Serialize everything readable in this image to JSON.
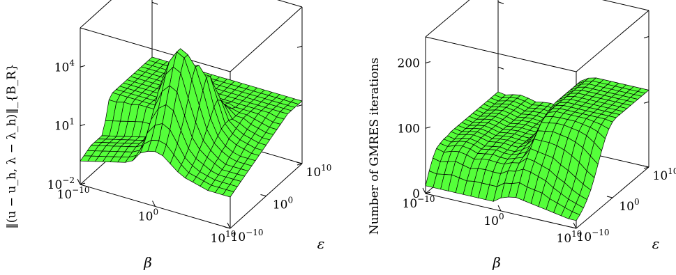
{
  "chart_data": [
    {
      "type": "surface",
      "xlabel": "β",
      "ylabel": "ε",
      "zlabel": "‖(u − u_h, λ − λ_h)‖_{B_R}",
      "z_scale": "log",
      "x_ticks": [
        {
          "base": "10",
          "exp": "−10"
        },
        {
          "base": "10",
          "exp": "0"
        },
        {
          "base": "10",
          "exp": "10"
        }
      ],
      "y_ticks": [
        {
          "base": "10",
          "exp": "−10"
        },
        {
          "base": "10",
          "exp": "0"
        },
        {
          "base": "10",
          "exp": "10"
        }
      ],
      "z_ticks": [
        {
          "base": "10",
          "exp": "−2"
        },
        {
          "base": "10",
          "exp": "1"
        },
        {
          "base": "10",
          "exp": "4"
        }
      ],
      "x_log_range": [
        -10,
        10
      ],
      "y_log_range": [
        -10,
        10
      ],
      "z_log_range": [
        -2,
        6
      ],
      "grid_size": 21,
      "values_log10_z": [
        [
          -0.8,
          -0.7,
          -0.6,
          -0.5,
          -0.5,
          -0.5,
          -0.5,
          0.1,
          1.0,
          1.2,
          1.2,
          1.2,
          1.2,
          1.2,
          1.2,
          1.2,
          1.2,
          1.2,
          1.2,
          1.2,
          1.2
        ],
        [
          -0.7,
          -0.6,
          -0.5,
          -0.4,
          -0.4,
          -0.4,
          -0.4,
          0.2,
          1.0,
          1.2,
          1.2,
          1.2,
          1.2,
          1.2,
          1.2,
          1.2,
          1.2,
          1.2,
          1.2,
          1.2,
          1.2
        ],
        [
          -0.6,
          -0.5,
          -0.4,
          -0.3,
          -0.3,
          -0.3,
          -0.3,
          0.3,
          1.1,
          1.2,
          1.2,
          1.2,
          1.2,
          1.2,
          1.2,
          1.2,
          1.2,
          1.2,
          1.2,
          1.2,
          1.2
        ],
        [
          -0.5,
          -0.4,
          -0.3,
          -0.2,
          -0.2,
          -0.2,
          -0.2,
          0.4,
          1.1,
          1.2,
          1.2,
          1.2,
          1.2,
          1.2,
          1.2,
          1.2,
          1.2,
          1.2,
          1.2,
          1.2,
          1.2
        ],
        [
          -0.4,
          -0.3,
          -0.2,
          -0.1,
          -0.1,
          -0.1,
          -0.1,
          0.5,
          1.2,
          1.2,
          1.2,
          1.2,
          1.2,
          1.2,
          1.2,
          1.2,
          1.2,
          1.2,
          1.2,
          1.2,
          1.2
        ],
        [
          -0.3,
          -0.2,
          -0.1,
          0.0,
          0.0,
          0.0,
          0.0,
          0.6,
          1.2,
          1.2,
          1.2,
          1.2,
          1.2,
          1.2,
          1.2,
          1.2,
          1.2,
          1.2,
          1.2,
          1.2,
          1.2
        ],
        [
          -0.2,
          -0.1,
          0.0,
          0.1,
          0.1,
          0.1,
          0.1,
          0.6,
          1.2,
          1.2,
          1.2,
          1.2,
          1.2,
          1.2,
          1.2,
          1.2,
          1.2,
          1.2,
          1.2,
          1.2,
          1.2
        ],
        [
          0.0,
          0.1,
          0.2,
          0.3,
          0.5,
          0.8,
          1.2,
          1.5,
          1.6,
          1.4,
          1.3,
          1.2,
          1.2,
          1.2,
          1.2,
          1.2,
          1.2,
          1.2,
          1.2,
          1.2,
          1.2
        ],
        [
          0.5,
          0.8,
          1.2,
          1.7,
          2.2,
          2.8,
          3.2,
          3.2,
          2.6,
          1.9,
          1.5,
          1.3,
          1.2,
          1.2,
          1.2,
          1.2,
          1.2,
          1.2,
          1.2,
          1.2,
          1.2
        ],
        [
          0.7,
          1.1,
          1.7,
          2.4,
          3.1,
          3.8,
          4.3,
          4.3,
          3.6,
          2.6,
          1.9,
          1.5,
          1.3,
          1.2,
          1.2,
          1.2,
          1.2,
          1.2,
          1.2,
          1.2,
          1.2
        ],
        [
          0.8,
          1.2,
          1.9,
          2.7,
          3.5,
          4.3,
          4.9,
          4.9,
          4.1,
          3.0,
          2.2,
          1.7,
          1.4,
          1.3,
          1.2,
          1.2,
          1.2,
          1.2,
          1.2,
          1.2,
          1.2
        ],
        [
          0.7,
          1.1,
          1.7,
          2.5,
          3.3,
          4.1,
          4.7,
          4.7,
          4.0,
          3.0,
          2.3,
          1.8,
          1.5,
          1.3,
          1.2,
          1.2,
          1.2,
          1.2,
          1.2,
          1.2,
          1.2
        ],
        [
          0.4,
          0.7,
          1.1,
          1.6,
          2.2,
          2.9,
          3.7,
          4.2,
          4.1,
          3.5,
          2.7,
          2.0,
          1.6,
          1.4,
          1.3,
          1.2,
          1.2,
          1.2,
          1.2,
          1.2,
          1.2
        ],
        [
          0.1,
          0.3,
          0.5,
          0.8,
          1.2,
          1.8,
          2.5,
          3.1,
          3.6,
          3.5,
          2.9,
          2.2,
          1.7,
          1.4,
          1.3,
          1.2,
          1.2,
          1.2,
          1.2,
          1.2,
          1.2
        ],
        [
          -0.1,
          0.0,
          0.2,
          0.4,
          0.7,
          1.0,
          1.4,
          1.8,
          2.2,
          2.4,
          2.2,
          1.8,
          1.5,
          1.3,
          1.2,
          1.2,
          1.2,
          1.2,
          1.2,
          1.2,
          1.2
        ],
        [
          -0.2,
          -0.1,
          0.0,
          0.2,
          0.4,
          0.6,
          0.8,
          1.0,
          1.2,
          1.3,
          1.3,
          1.2,
          1.2,
          1.2,
          1.2,
          1.2,
          1.2,
          1.2,
          1.2,
          1.2,
          1.2
        ],
        [
          -0.3,
          -0.2,
          -0.1,
          0.0,
          0.2,
          0.3,
          0.5,
          0.6,
          0.8,
          0.9,
          1.0,
          1.1,
          1.2,
          1.2,
          1.2,
          1.2,
          1.2,
          1.2,
          1.2,
          1.2,
          1.2
        ],
        [
          -0.4,
          -0.3,
          -0.2,
          -0.1,
          0.0,
          0.1,
          0.3,
          0.4,
          0.6,
          0.7,
          0.8,
          0.9,
          1.0,
          1.1,
          1.2,
          1.2,
          1.2,
          1.2,
          1.2,
          1.2,
          1.2
        ],
        [
          -0.4,
          -0.3,
          -0.2,
          -0.1,
          0.0,
          0.1,
          0.2,
          0.3,
          0.5,
          0.6,
          0.7,
          0.8,
          0.9,
          1.0,
          1.1,
          1.2,
          1.2,
          1.2,
          1.2,
          1.2,
          1.2
        ],
        [
          -0.4,
          -0.3,
          -0.2,
          -0.1,
          0.0,
          0.1,
          0.2,
          0.3,
          0.4,
          0.5,
          0.6,
          0.7,
          0.8,
          0.9,
          1.0,
          1.1,
          1.2,
          1.2,
          1.2,
          1.2,
          1.2
        ],
        [
          -0.4,
          -0.3,
          -0.2,
          -0.1,
          0.0,
          0.1,
          0.2,
          0.3,
          0.4,
          0.5,
          0.6,
          0.7,
          0.8,
          0.9,
          1.0,
          1.1,
          1.2,
          1.2,
          1.2,
          1.2,
          1.2
        ]
      ]
    },
    {
      "type": "surface",
      "xlabel": "β",
      "ylabel": "ε",
      "zlabel": "Number of GMRES iterations",
      "z_scale": "linear",
      "x_ticks": [
        {
          "base": "10",
          "exp": "−10"
        },
        {
          "base": "10",
          "exp": "0"
        },
        {
          "base": "10",
          "exp": "10"
        }
      ],
      "y_ticks": [
        {
          "base": "10",
          "exp": "−10"
        },
        {
          "base": "10",
          "exp": "0"
        },
        {
          "base": "10",
          "exp": "10"
        }
      ],
      "z_ticks": [
        {
          "label": "0",
          "value": 0
        },
        {
          "label": "100",
          "value": 100
        },
        {
          "label": "200",
          "value": 200
        }
      ],
      "x_log_range": [
        -10,
        10
      ],
      "y_log_range": [
        -10,
        10
      ],
      "z_range": [
        0,
        240
      ],
      "grid_size": 21,
      "values": [
        [
          12,
          30,
          45,
          55,
          58,
          60,
          60,
          62,
          62,
          62,
          62,
          62,
          62,
          62,
          62,
          62,
          62,
          62,
          62,
          62,
          62
        ],
        [
          12,
          28,
          42,
          52,
          56,
          58,
          58,
          60,
          60,
          60,
          60,
          60,
          60,
          60,
          60,
          60,
          60,
          60,
          60,
          60,
          60
        ],
        [
          12,
          30,
          45,
          56,
          60,
          62,
          62,
          63,
          63,
          63,
          63,
          63,
          63,
          63,
          63,
          63,
          63,
          63,
          63,
          63,
          63
        ],
        [
          12,
          32,
          48,
          58,
          62,
          64,
          64,
          65,
          65,
          65,
          65,
          65,
          65,
          65,
          65,
          65,
          65,
          65,
          65,
          65,
          65
        ],
        [
          12,
          30,
          45,
          56,
          60,
          62,
          62,
          63,
          63,
          63,
          63,
          63,
          63,
          63,
          63,
          63,
          63,
          63,
          63,
          63,
          63
        ],
        [
          12,
          28,
          42,
          52,
          56,
          58,
          58,
          60,
          60,
          60,
          60,
          60,
          60,
          60,
          60,
          60,
          60,
          60,
          60,
          60,
          60
        ],
        [
          12,
          30,
          45,
          55,
          58,
          60,
          60,
          62,
          62,
          62,
          62,
          62,
          62,
          62,
          62,
          62,
          62,
          62,
          62,
          62,
          62
        ],
        [
          12,
          30,
          46,
          56,
          60,
          62,
          62,
          63,
          63,
          63,
          63,
          63,
          63,
          63,
          63,
          63,
          63,
          63,
          63,
          63,
          63
        ],
        [
          12,
          30,
          45,
          55,
          58,
          60,
          60,
          62,
          62,
          62,
          62,
          62,
          62,
          62,
          62,
          62,
          62,
          62,
          62,
          62,
          62
        ],
        [
          12,
          30,
          45,
          55,
          58,
          60,
          60,
          62,
          62,
          62,
          62,
          62,
          62,
          62,
          62,
          62,
          62,
          62,
          62,
          62,
          62
        ],
        [
          20,
          38,
          52,
          60,
          62,
          64,
          66,
          68,
          70,
          70,
          70,
          70,
          70,
          70,
          70,
          70,
          70,
          70,
          70,
          70,
          70
        ],
        [
          24,
          40,
          54,
          62,
          66,
          70,
          74,
          80,
          88,
          95,
          100,
          104,
          106,
          108,
          108,
          108,
          108,
          108,
          108,
          108,
          108
        ],
        [
          26,
          44,
          60,
          72,
          82,
          92,
          100,
          108,
          112,
          114,
          115,
          115,
          115,
          115,
          115,
          115,
          115,
          115,
          115,
          115,
          115
        ],
        [
          24,
          40,
          58,
          70,
          80,
          92,
          102,
          110,
          115,
          118,
          118,
          118,
          118,
          118,
          118,
          118,
          118,
          118,
          118,
          118,
          118
        ],
        [
          22,
          38,
          54,
          66,
          78,
          92,
          104,
          112,
          116,
          118,
          118,
          118,
          118,
          118,
          118,
          118,
          118,
          118,
          118,
          118,
          118
        ],
        [
          20,
          36,
          50,
          62,
          76,
          90,
          102,
          112,
          116,
          118,
          118,
          118,
          118,
          118,
          118,
          118,
          118,
          118,
          118,
          118,
          118
        ],
        [
          18,
          30,
          42,
          54,
          68,
          86,
          100,
          110,
          116,
          118,
          118,
          118,
          118,
          118,
          118,
          118,
          118,
          118,
          118,
          118,
          118
        ],
        [
          16,
          26,
          36,
          48,
          62,
          80,
          96,
          108,
          114,
          118,
          118,
          118,
          118,
          118,
          118,
          118,
          118,
          118,
          118,
          118,
          118
        ],
        [
          14,
          22,
          30,
          40,
          54,
          72,
          90,
          104,
          112,
          116,
          118,
          118,
          118,
          118,
          118,
          118,
          118,
          118,
          118,
          118,
          118
        ],
        [
          12,
          18,
          26,
          34,
          46,
          62,
          80,
          96,
          108,
          114,
          118,
          118,
          118,
          118,
          118,
          118,
          118,
          118,
          118,
          118,
          118
        ],
        [
          12,
          16,
          22,
          30,
          40,
          54,
          70,
          86,
          100,
          110,
          116,
          118,
          118,
          118,
          118,
          118,
          118,
          118,
          118,
          118,
          118
        ]
      ]
    }
  ]
}
